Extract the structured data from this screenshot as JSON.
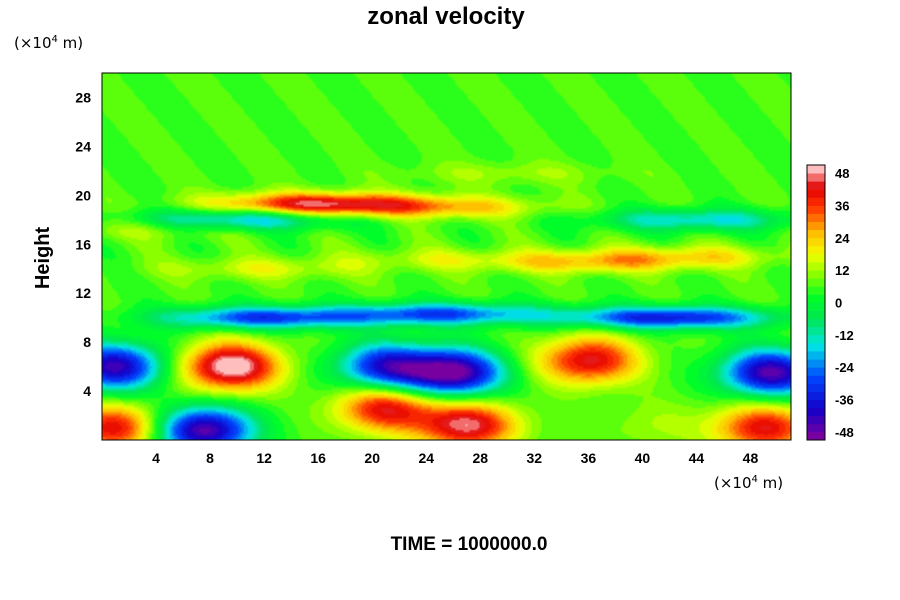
{
  "chart_data": {
    "type": "heatmap",
    "title": "zonal velocity",
    "ylabel": "Height",
    "xlabel": "",
    "x_unit": "(×10",
    "x_unit_exp": "4",
    "x_unit_tail": " m)",
    "y_unit": "(×10",
    "y_unit_exp": "4",
    "y_unit_tail": " m)",
    "xlim": [
      0,
      51
    ],
    "ylim": [
      0,
      30
    ],
    "x_ticks": [
      "4",
      "8",
      "12",
      "16",
      "20",
      "24",
      "28",
      "32",
      "36",
      "40",
      "44",
      "48"
    ],
    "y_ticks": [
      "4",
      "8",
      "12",
      "16",
      "20",
      "24",
      "28"
    ],
    "colorbar": {
      "range": [
        -51,
        51
      ],
      "ticks": [
        "48",
        "36",
        "24",
        "12",
        "0",
        "-12",
        "-24",
        "-36",
        "-48"
      ]
    },
    "footer": "TIME = 1000000.0",
    "features": [
      {
        "x": 9.5,
        "y": 6,
        "value": 52
      },
      {
        "x": 7.5,
        "y": 0.8,
        "value": -50
      },
      {
        "x": 1,
        "y": 6,
        "value": -45
      },
      {
        "x": 1,
        "y": 1,
        "value": 40
      },
      {
        "x": 26,
        "y": 5.5,
        "value": -52
      },
      {
        "x": 21,
        "y": 6,
        "value": -38
      },
      {
        "x": 27,
        "y": 1.2,
        "value": 45
      },
      {
        "x": 21,
        "y": 2.6,
        "value": 40
      },
      {
        "x": 36,
        "y": 6.5,
        "value": 42
      },
      {
        "x": 49.5,
        "y": 5.5,
        "value": -48
      },
      {
        "x": 49,
        "y": 1,
        "value": 40
      },
      {
        "x": 41,
        "y": 1.2,
        "value": 10
      },
      {
        "x": 12,
        "y": 10,
        "value": -32
      },
      {
        "x": 42,
        "y": 10,
        "value": -38
      },
      {
        "x": 25,
        "y": 10.3,
        "value": -30
      },
      {
        "x": 16,
        "y": 19.3,
        "value": 42
      },
      {
        "x": 25,
        "y": 19,
        "value": 22
      },
      {
        "x": 10,
        "y": 18,
        "value": -22
      },
      {
        "x": 44,
        "y": 18,
        "value": -18
      },
      {
        "x": 36,
        "y": 14.5,
        "value": 20
      },
      {
        "x": 43,
        "y": 15,
        "value": 18
      },
      {
        "x": 12,
        "y": 14,
        "value": 14
      },
      {
        "x": 25,
        "y": 14.8,
        "value": 12
      },
      {
        "x": 4,
        "y": 17.3,
        "value": 12
      },
      {
        "x": 30,
        "y": 21.8,
        "value": 10
      },
      {
        "x": 25,
        "y": 23.5,
        "value": 4
      }
    ]
  }
}
